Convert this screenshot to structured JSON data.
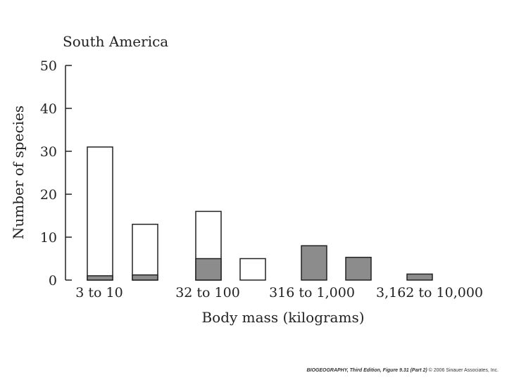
{
  "chart_data": {
    "type": "bar",
    "title": "South America",
    "xlabel": "Body mass (kilograms)",
    "ylabel": "Number of species",
    "ylim": [
      0,
      50
    ],
    "yticks": [
      0,
      10,
      20,
      30,
      40,
      50
    ],
    "xtick_labels": [
      "3 to 10",
      "32 to 100",
      "316 to 1,000",
      "3,162 to 10,000"
    ],
    "bar_style": "stacked (white total outline, gray subset)",
    "colors": {
      "outline": "#222222",
      "subset_fill": "#8c8c8c",
      "total_fill": "#ffffff"
    },
    "bars": [
      {
        "total": 31,
        "subset": 1
      },
      {
        "total": 13,
        "subset": 1.2
      },
      {
        "total": 16,
        "subset": 5
      },
      {
        "total": 5,
        "subset": 0
      },
      {
        "total": 8,
        "subset": 8
      },
      {
        "total": 5.3,
        "subset": 5.3
      },
      {
        "total": 1.4,
        "subset": 1.4
      }
    ]
  },
  "credit": {
    "book": "BIOGEOGRAPHY, Third Edition, Figure 9.31 (Part 2)",
    "copyright": "© 2006 Sinauer Associates, Inc."
  }
}
